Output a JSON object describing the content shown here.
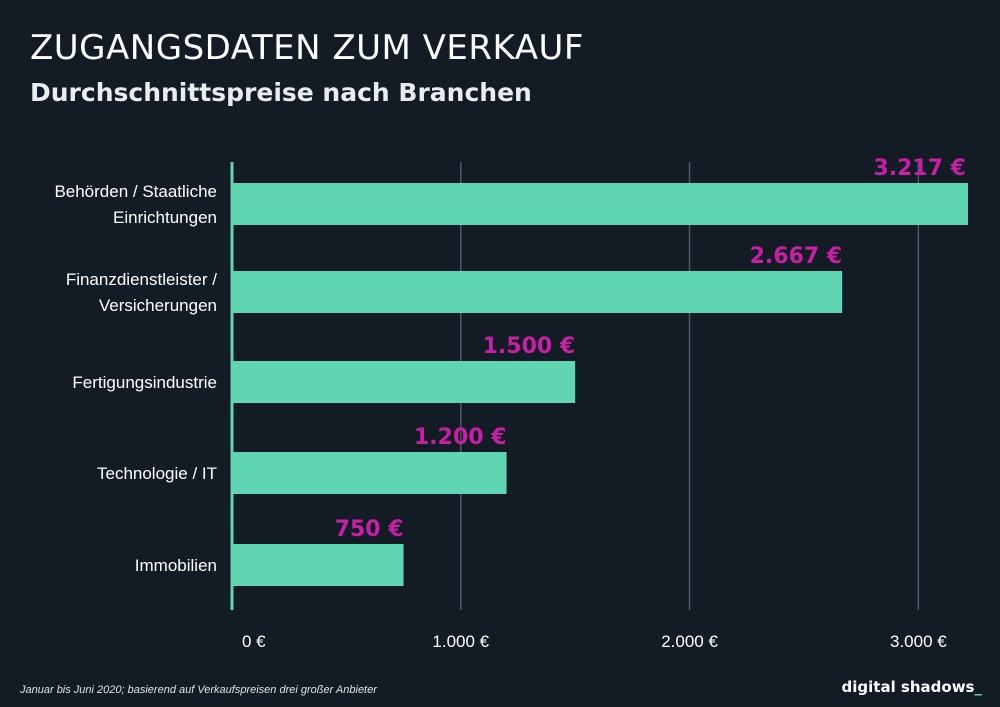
{
  "header": {
    "title": "ZUGANGSDATEN ZUM VERKAUF",
    "subtitle": "Durchschnittspreise nach Branchen"
  },
  "chart_data": {
    "type": "bar",
    "orientation": "horizontal",
    "title": "ZUGANGSDATEN ZUM VERKAUF",
    "subtitle": "Durchschnittspreise nach Branchen",
    "categories": [
      [
        "Behörden / Staatliche",
        "Einrichtungen"
      ],
      [
        "Finanzdienstleister /",
        "Versicherungen"
      ],
      [
        "Fertigungsindustrie"
      ],
      [
        "Technologie / IT"
      ],
      [
        "Immobilien"
      ]
    ],
    "values": [
      3217,
      2667,
      1500,
      1200,
      750
    ],
    "value_labels": [
      "3.217 €",
      "2.667 €",
      "1.500 €",
      "1.200 €",
      "750 €"
    ],
    "xlim": [
      0,
      3200
    ],
    "ticks": [
      0,
      1000,
      2000,
      3000
    ],
    "tick_labels": [
      "0 €",
      "1.000 €",
      "2.000 €",
      "3.000 €"
    ],
    "xlabel": "",
    "ylabel": "",
    "grid": true,
    "colors": {
      "bar": "#5fd6b1",
      "value_label": "#c81fa6",
      "grid": "#4a5870",
      "axis": "#5fd6b1",
      "text": "#ffffff"
    }
  },
  "footer": {
    "note": "Januar bis Juni 2020; basierend auf Verkaufspreisen drei großer Anbieter",
    "brand": "digital shadows",
    "brand_mark": "_"
  }
}
